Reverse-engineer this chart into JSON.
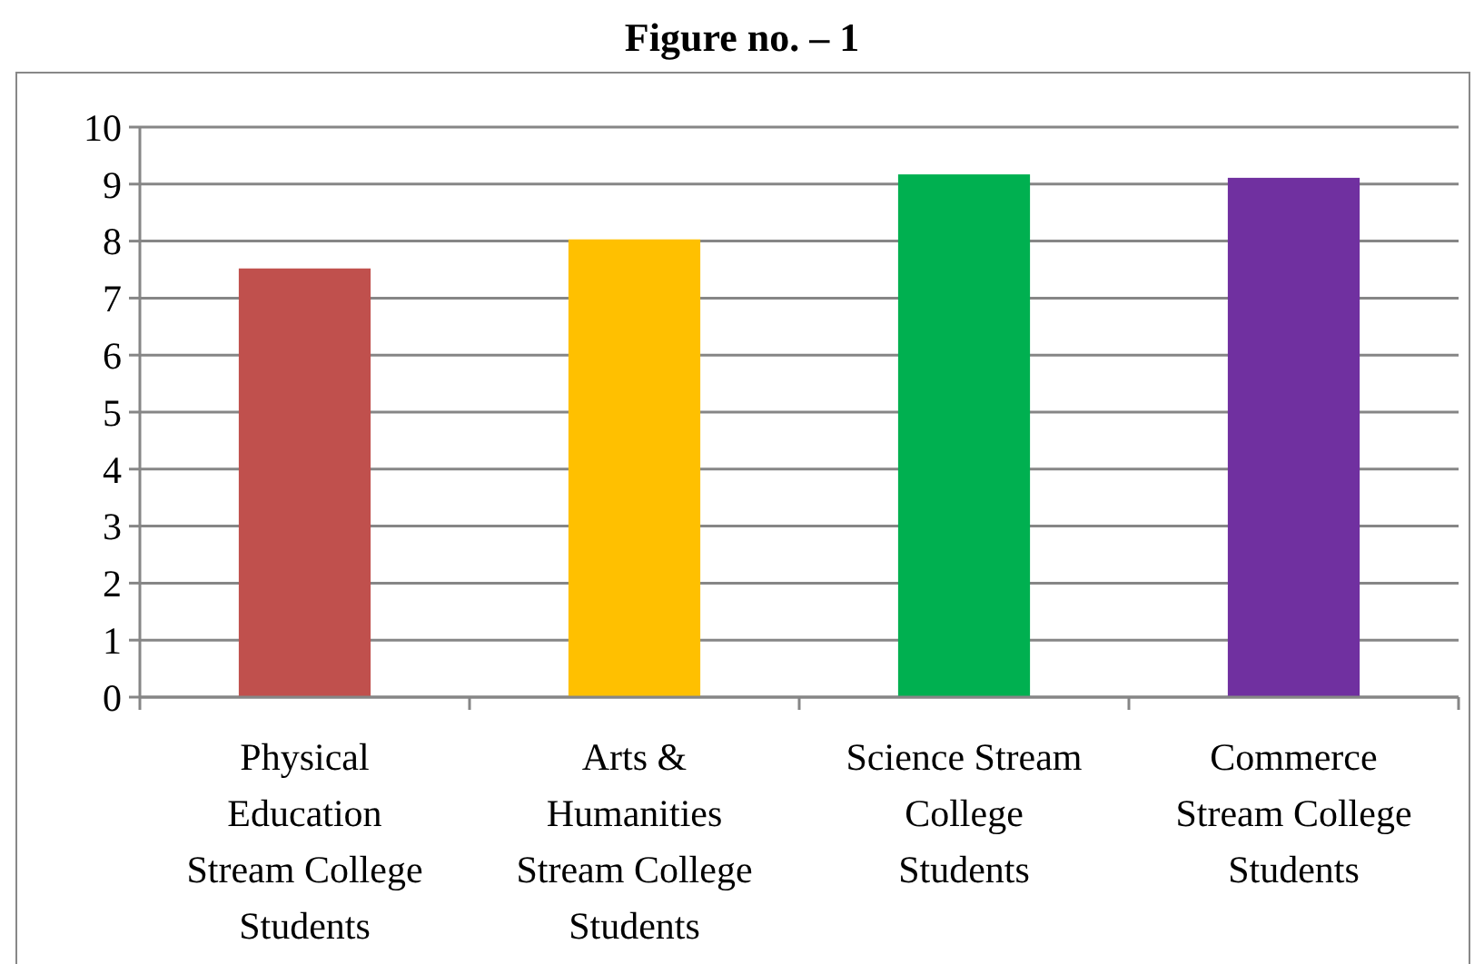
{
  "chart_data": {
    "type": "bar",
    "title": "Figure no. – 1",
    "categories": [
      "Physical Education Stream College Students",
      "Arts & Humanities Stream College Students",
      "Science Stream College Students",
      "Commerce Stream College Students"
    ],
    "values": [
      7.52,
      8.03,
      9.17,
      9.11
    ],
    "colors": [
      "#c0504d",
      "#ffc000",
      "#00b050",
      "#7030a0"
    ],
    "ylim": [
      0,
      10
    ],
    "yticks": [
      0,
      1,
      2,
      3,
      4,
      5,
      6,
      7,
      8,
      9,
      10
    ],
    "grid": "y"
  }
}
